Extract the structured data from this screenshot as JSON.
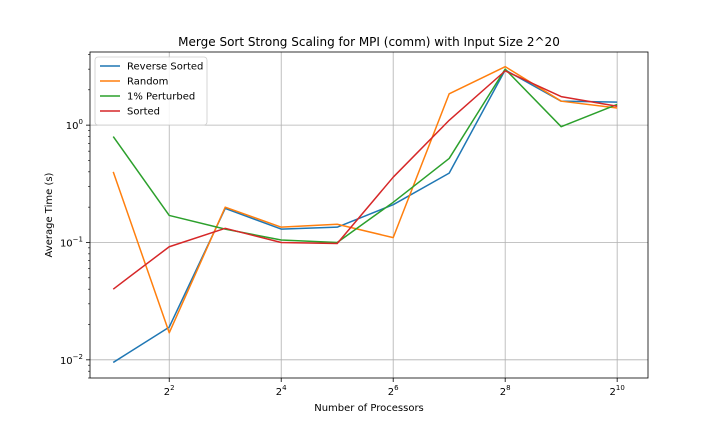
{
  "chart_data": {
    "type": "line",
    "title": "Merge Sort Strong Scaling for MPI (comm) with Input Size 2^20",
    "xlabel": "Number of Processors",
    "ylabel": "Average Time (s)",
    "x_scale": "log2",
    "y_scale": "log10",
    "xlim": [
      1.5,
      1500
    ],
    "ylim": [
      0.007,
      4.2
    ],
    "grid": true,
    "legend_position": "top-left",
    "x_ticks": [
      {
        "value": 4,
        "base": "2",
        "exp": "2"
      },
      {
        "value": 16,
        "base": "2",
        "exp": "4"
      },
      {
        "value": 64,
        "base": "2",
        "exp": "6"
      },
      {
        "value": 256,
        "base": "2",
        "exp": "8"
      },
      {
        "value": 1024,
        "base": "2",
        "exp": "10"
      }
    ],
    "y_ticks": [
      {
        "value": 0.01,
        "base": "10",
        "exp": "−2"
      },
      {
        "value": 0.1,
        "base": "10",
        "exp": "−1"
      },
      {
        "value": 1,
        "base": "10",
        "exp": "0"
      }
    ],
    "x": [
      2,
      4,
      8,
      16,
      32,
      64,
      128,
      256,
      512,
      1024
    ],
    "series": [
      {
        "name": "Reverse Sorted",
        "color": "#1f77b4",
        "values": [
          0.0095,
          0.019,
          0.195,
          0.13,
          0.135,
          0.21,
          0.39,
          2.95,
          1.6,
          1.57
        ]
      },
      {
        "name": "Random",
        "color": "#ff7f0e",
        "values": [
          0.4,
          0.017,
          0.2,
          0.135,
          0.143,
          0.11,
          1.85,
          3.15,
          1.6,
          1.4
        ]
      },
      {
        "name": "1% Perturbed",
        "color": "#2ca02c",
        "values": [
          0.8,
          0.17,
          0.13,
          0.105,
          0.1,
          0.22,
          0.52,
          3.0,
          0.97,
          1.5
        ]
      },
      {
        "name": "Sorted",
        "color": "#d62728",
        "values": [
          0.04,
          0.092,
          0.132,
          0.1,
          0.098,
          0.36,
          1.1,
          2.9,
          1.75,
          1.45
        ]
      }
    ]
  }
}
